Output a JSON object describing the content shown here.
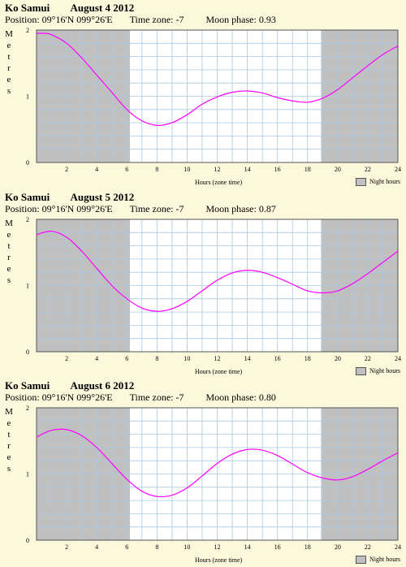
{
  "chart_data": [
    {
      "type": "line",
      "location": "Ko Samui",
      "date": "August 4 2012",
      "position": "Position: 09°16'N 099°26'E",
      "timezone": "Time zone: -7",
      "moon_phase": "Moon phase: 0.93",
      "ylabel": "Metres",
      "xlabel": "Hours (zone time)",
      "legend": "Night hours",
      "xlim": [
        0,
        24
      ],
      "ylim": [
        0,
        2
      ],
      "xticks": [
        2,
        4,
        6,
        8,
        10,
        12,
        14,
        16,
        18,
        20,
        22,
        24
      ],
      "yticks": [
        0,
        1,
        2
      ],
      "night_hours": [
        [
          0,
          6.2
        ],
        [
          18.9,
          24
        ]
      ],
      "series_color": "#ff00ff",
      "night_color": "#c0c0c0",
      "grid_color": "#a8c8e8",
      "x": [
        0,
        0.5,
        1,
        2,
        3,
        4,
        5,
        6,
        7,
        8,
        9,
        10,
        11,
        12,
        13,
        14,
        15,
        16,
        17,
        18,
        19,
        20,
        21,
        22,
        23,
        24
      ],
      "y": [
        1.95,
        1.95,
        1.93,
        1.8,
        1.58,
        1.32,
        1.06,
        0.8,
        0.63,
        0.56,
        0.6,
        0.72,
        0.88,
        0.99,
        1.06,
        1.08,
        1.05,
        0.98,
        0.93,
        0.91,
        0.97,
        1.1,
        1.28,
        1.46,
        1.63,
        1.76
      ]
    },
    {
      "type": "line",
      "location": "Ko Samui",
      "date": "August 5 2012",
      "position": "Position: 09°16'N 099°26'E",
      "timezone": "Time zone: -7",
      "moon_phase": "Moon phase: 0.87",
      "ylabel": "Metres",
      "xlabel": "Hours (zone time)",
      "legend": "Night hours",
      "xlim": [
        0,
        24
      ],
      "ylim": [
        0,
        2
      ],
      "xticks": [
        2,
        4,
        6,
        8,
        10,
        12,
        14,
        16,
        18,
        20,
        22,
        24
      ],
      "yticks": [
        0,
        1,
        2
      ],
      "night_hours": [
        [
          0,
          6.2
        ],
        [
          18.9,
          24
        ]
      ],
      "series_color": "#ff00ff",
      "night_color": "#c0c0c0",
      "grid_color": "#a8c8e8",
      "x": [
        0,
        1,
        2,
        3,
        4,
        5,
        6,
        7,
        8,
        9,
        10,
        11,
        12,
        13,
        14,
        15,
        16,
        17,
        18,
        19,
        20,
        21,
        22,
        23,
        24
      ],
      "y": [
        1.77,
        1.82,
        1.73,
        1.52,
        1.26,
        1.0,
        0.8,
        0.66,
        0.61,
        0.65,
        0.76,
        0.92,
        1.08,
        1.19,
        1.23,
        1.2,
        1.12,
        1.02,
        0.92,
        0.89,
        0.92,
        1.03,
        1.18,
        1.35,
        1.52
      ]
    },
    {
      "type": "line",
      "location": "Ko Samui",
      "date": "August 6 2012",
      "position": "Position: 09°16'N 099°26'E",
      "timezone": "Time zone: -7",
      "moon_phase": "Moon phase: 0.80",
      "ylabel": "Metres",
      "xlabel": "Hours (zone time)",
      "legend": "Night hours",
      "xlim": [
        0,
        24
      ],
      "ylim": [
        0,
        2
      ],
      "xticks": [
        2,
        4,
        6,
        8,
        10,
        12,
        14,
        16,
        18,
        20,
        22,
        24
      ],
      "yticks": [
        0,
        1,
        2
      ],
      "night_hours": [
        [
          0,
          6.2
        ],
        [
          18.9,
          24
        ]
      ],
      "series_color": "#ff00ff",
      "night_color": "#c0c0c0",
      "grid_color": "#a8c8e8",
      "x": [
        0,
        1,
        2,
        3,
        4,
        5,
        6,
        7,
        8,
        9,
        10,
        11,
        12,
        13,
        14,
        15,
        16,
        17,
        18,
        19,
        20,
        21,
        22,
        23,
        24
      ],
      "y": [
        1.56,
        1.66,
        1.67,
        1.58,
        1.4,
        1.16,
        0.92,
        0.74,
        0.66,
        0.68,
        0.79,
        0.97,
        1.16,
        1.3,
        1.37,
        1.36,
        1.28,
        1.15,
        1.02,
        0.94,
        0.91,
        0.96,
        1.07,
        1.2,
        1.32
      ]
    }
  ]
}
